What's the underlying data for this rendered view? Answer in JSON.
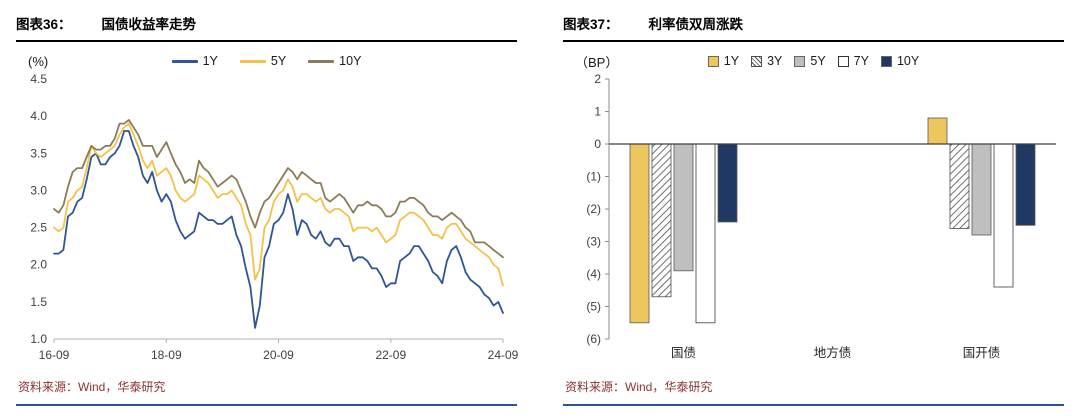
{
  "panels": [
    {
      "label": "图表36：",
      "title": "国债收益率走势",
      "source": "资料来源：Wind，华泰研究"
    },
    {
      "label": "图表37：",
      "title": "利率债双周涨跌",
      "source": "资料来源：Wind，华泰研究"
    }
  ],
  "colors": {
    "accent_blue_rule": "#2F5496",
    "header_black_rule": "#000000",
    "source_text": "#8C3333",
    "line_1y": "#2F5597",
    "line_5y": "#F3C24A",
    "line_10y": "#8B7B58",
    "bar_1y_yellow": "#EDC75D",
    "bar_5y_gray": "#BFBFBF",
    "bar_10y_navy": "#1F3864"
  },
  "chart_data": [
    {
      "type": "line",
      "title": "国债收益率走势",
      "unit_label": "(%)",
      "legend_position": "top",
      "ylim": [
        1.0,
        4.5
      ],
      "y_ticks": [
        1.0,
        1.5,
        2.0,
        2.5,
        3.0,
        3.5,
        4.0,
        4.5
      ],
      "x_tick_labels": [
        "16-09",
        "18-09",
        "20-09",
        "22-09",
        "24-09"
      ],
      "x_tick_positions": [
        0,
        24,
        48,
        72,
        96
      ],
      "series": [
        {
          "name": "1Y",
          "color": "#2F5597",
          "values": [
            2.15,
            2.15,
            2.2,
            2.65,
            2.7,
            2.85,
            2.9,
            3.15,
            3.45,
            3.5,
            3.35,
            3.35,
            3.45,
            3.5,
            3.6,
            3.8,
            3.8,
            3.6,
            3.45,
            3.2,
            3.1,
            3.25,
            3.0,
            2.85,
            2.95,
            2.85,
            2.6,
            2.45,
            2.35,
            2.4,
            2.45,
            2.7,
            2.65,
            2.6,
            2.6,
            2.55,
            2.55,
            2.6,
            2.65,
            2.4,
            2.25,
            1.95,
            1.7,
            1.15,
            1.45,
            2.1,
            2.25,
            2.55,
            2.6,
            2.7,
            2.95,
            2.75,
            2.4,
            2.6,
            2.55,
            2.4,
            2.35,
            2.45,
            2.3,
            2.25,
            2.35,
            2.35,
            2.25,
            2.25,
            2.05,
            2.1,
            2.1,
            2.05,
            1.95,
            1.95,
            1.85,
            1.7,
            1.75,
            1.75,
            2.05,
            2.1,
            2.15,
            2.25,
            2.25,
            2.15,
            2.05,
            1.9,
            1.85,
            1.75,
            2.05,
            2.2,
            2.25,
            2.1,
            1.9,
            1.8,
            1.75,
            1.7,
            1.6,
            1.55,
            1.45,
            1.5,
            1.35
          ]
        },
        {
          "name": "5Y",
          "color": "#F3C24A",
          "values": [
            2.5,
            2.45,
            2.5,
            2.85,
            2.9,
            3.0,
            3.05,
            3.3,
            3.6,
            3.5,
            3.45,
            3.5,
            3.55,
            3.6,
            3.75,
            3.85,
            3.9,
            3.75,
            3.6,
            3.4,
            3.3,
            3.4,
            3.2,
            3.25,
            3.3,
            3.2,
            3.0,
            2.9,
            2.85,
            2.9,
            2.95,
            3.2,
            3.15,
            3.1,
            3.0,
            2.9,
            2.95,
            2.95,
            3.0,
            2.9,
            2.8,
            2.55,
            2.4,
            1.8,
            1.95,
            2.5,
            2.6,
            2.85,
            2.95,
            3.0,
            3.15,
            3.05,
            2.85,
            2.95,
            2.95,
            2.9,
            2.85,
            2.9,
            2.75,
            2.7,
            2.75,
            2.75,
            2.7,
            2.65,
            2.45,
            2.5,
            2.5,
            2.5,
            2.45,
            2.5,
            2.4,
            2.3,
            2.35,
            2.4,
            2.6,
            2.65,
            2.7,
            2.7,
            2.65,
            2.6,
            2.5,
            2.4,
            2.4,
            2.35,
            2.5,
            2.55,
            2.55,
            2.45,
            2.35,
            2.3,
            2.25,
            2.2,
            2.15,
            2.1,
            2.0,
            1.95,
            1.72
          ]
        },
        {
          "name": "10Y",
          "color": "#8B7B58",
          "values": [
            2.75,
            2.7,
            2.8,
            3.05,
            3.25,
            3.3,
            3.3,
            3.45,
            3.6,
            3.55,
            3.55,
            3.6,
            3.6,
            3.7,
            3.9,
            3.9,
            3.95,
            3.85,
            3.75,
            3.6,
            3.6,
            3.6,
            3.45,
            3.55,
            3.65,
            3.5,
            3.35,
            3.25,
            3.1,
            3.15,
            3.1,
            3.4,
            3.3,
            3.25,
            3.15,
            3.05,
            3.1,
            3.15,
            3.2,
            3.15,
            3.0,
            2.85,
            2.65,
            2.5,
            2.7,
            2.85,
            2.9,
            3.0,
            3.1,
            3.2,
            3.3,
            3.25,
            3.15,
            3.25,
            3.2,
            3.15,
            3.1,
            3.1,
            2.9,
            2.85,
            2.9,
            2.95,
            2.9,
            2.8,
            2.7,
            2.8,
            2.8,
            2.85,
            2.8,
            2.8,
            2.75,
            2.65,
            2.65,
            2.7,
            2.85,
            2.85,
            2.9,
            2.9,
            2.85,
            2.8,
            2.7,
            2.65,
            2.65,
            2.6,
            2.65,
            2.7,
            2.65,
            2.6,
            2.5,
            2.45,
            2.3,
            2.3,
            2.3,
            2.25,
            2.2,
            2.15,
            2.1
          ]
        }
      ]
    },
    {
      "type": "bar",
      "title": "利率债双周涨跌",
      "unit_label": "（BP）",
      "legend_position": "top",
      "ylim": [
        -6,
        2
      ],
      "y_ticks": [
        2,
        1,
        0,
        -1,
        -2,
        -3,
        -4,
        -5,
        -6
      ],
      "y_tick_labels": [
        "2",
        "1",
        "0",
        "(1)",
        "(2)",
        "(3)",
        "(4)",
        "(5)",
        "(6)"
      ],
      "categories": [
        "国债",
        "地方债",
        "国开债"
      ],
      "series": [
        {
          "name": "1Y",
          "style": "solid",
          "color": "#EDC75D",
          "values": [
            -5.5,
            0,
            0.8
          ]
        },
        {
          "name": "3Y",
          "style": "hatch",
          "color": "#FFFFFF",
          "values": [
            -4.7,
            0,
            -2.6
          ]
        },
        {
          "name": "5Y",
          "style": "solid",
          "color": "#BFBFBF",
          "values": [
            -3.9,
            0,
            -2.8
          ]
        },
        {
          "name": "7Y",
          "style": "outline",
          "color": "#FFFFFF",
          "values": [
            -5.5,
            0,
            -4.4
          ]
        },
        {
          "name": "10Y",
          "style": "solid",
          "color": "#1F3864",
          "values": [
            -2.4,
            0,
            -2.5
          ]
        }
      ]
    }
  ]
}
